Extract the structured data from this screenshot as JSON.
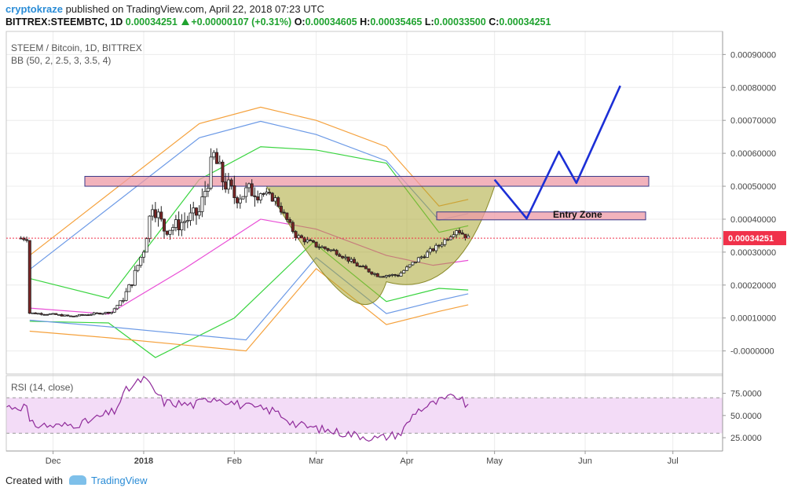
{
  "header": {
    "user": "cryptokraze",
    "published": "published on TradingView.com, April 22, 2018 07:23 UTC",
    "symbol": "BITTREX:STEEMBTC, 1D",
    "last": "0.00034251",
    "change": "+0.00000107 (+0.31%)",
    "o_label": "O:",
    "o": "0.00034605",
    "h_label": "H:",
    "h": "0.00035465",
    "l_label": "L:",
    "l": "0.00033500",
    "c_label": "C:",
    "c": "0.00034251"
  },
  "pane": {
    "title": "STEEM / Bitcoin, 1D, BITTREX",
    "indicator": "BB (50, 2, 2.5, 3, 3.5, 4)",
    "rsi_label": "RSI (14, close)",
    "entry_zone": "Entry Zone",
    "price_tag": "0.00034251"
  },
  "footer": {
    "created": "Created with",
    "brand": "TradingView"
  },
  "colors": {
    "price_tag": "#f0314a",
    "resistance": "#ee9aa6",
    "projection": "#1c2fd6",
    "cup_fill": "#a9a632",
    "rsi_line": "#8f2a9a",
    "rsi_band": "#f3dcf7",
    "bb_basis": "#e94ed6",
    "bb_green": "#39d43f",
    "bb_blue": "#6b99e6",
    "bb_orange": "#f5a13c"
  },
  "chart_data": [
    {
      "type": "candlestick",
      "title": "STEEM / Bitcoin, 1D, BITTREX",
      "x_ticks": [
        "Dec",
        "2018",
        "Feb",
        "Mar",
        "Apr",
        "May",
        "Jun",
        "Jul"
      ],
      "y_ticks": [
        "0.00090000",
        "0.00080000",
        "0.00070000",
        "0.00060000",
        "0.00050000",
        "0.00040000",
        "0.00030000",
        "0.00020000",
        "0.00010000",
        "-0.0000000"
      ],
      "ylim": [
        -7e-05,
        0.00097
      ],
      "last_price": 0.00034251,
      "close_series": [
        {
          "date": "2017-11-23",
          "close": 0.000115
        },
        {
          "date": "2017-11-30",
          "close": 0.000112
        },
        {
          "date": "2017-12-07",
          "close": 0.000105
        },
        {
          "date": "2017-12-14",
          "close": 0.000112
        },
        {
          "date": "2017-12-21",
          "close": 0.000118
        },
        {
          "date": "2017-12-25",
          "close": 0.00016
        },
        {
          "date": "2017-12-28",
          "close": 0.00021
        },
        {
          "date": "2018-01-01",
          "close": 0.00031
        },
        {
          "date": "2018-01-04",
          "close": 0.00045
        },
        {
          "date": "2018-01-08",
          "close": 0.00037
        },
        {
          "date": "2018-01-12",
          "close": 0.00038
        },
        {
          "date": "2018-01-16",
          "close": 0.0004
        },
        {
          "date": "2018-01-20",
          "close": 0.00042
        },
        {
          "date": "2018-01-25",
          "close": 0.00059
        },
        {
          "date": "2018-01-28",
          "close": 0.00052
        },
        {
          "date": "2018-02-01",
          "close": 0.00047
        },
        {
          "date": "2018-02-08",
          "close": 0.00049
        },
        {
          "date": "2018-02-15",
          "close": 0.00046
        },
        {
          "date": "2018-02-22",
          "close": 0.00035
        },
        {
          "date": "2018-03-01",
          "close": 0.00032
        },
        {
          "date": "2018-03-08",
          "close": 0.0003
        },
        {
          "date": "2018-03-15",
          "close": 0.00026
        },
        {
          "date": "2018-03-22",
          "close": 0.00023
        },
        {
          "date": "2018-03-29",
          "close": 0.00023
        },
        {
          "date": "2018-04-05",
          "close": 0.00028
        },
        {
          "date": "2018-04-12",
          "close": 0.00032
        },
        {
          "date": "2018-04-18",
          "close": 0.00037
        },
        {
          "date": "2018-04-22",
          "close": 0.00034251
        }
      ],
      "bollinger": {
        "basis": [
          {
            "date": "2017-11-23",
            "v": 0.00013
          },
          {
            "date": "2017-12-20",
            "v": 0.000112
          },
          {
            "date": "2018-01-15",
            "v": 0.00025
          },
          {
            "date": "2018-02-10",
            "v": 0.0004
          },
          {
            "date": "2018-03-01",
            "v": 0.00037
          },
          {
            "date": "2018-03-25",
            "v": 0.00029
          },
          {
            "date": "2018-04-10",
            "v": 0.00026
          },
          {
            "date": "2018-04-22",
            "v": 0.000275
          }
        ],
        "upper_2": [
          {
            "date": "2017-11-23",
            "v": 0.00022
          },
          {
            "date": "2017-12-20",
            "v": 0.00016
          },
          {
            "date": "2018-01-01",
            "v": 0.0003
          },
          {
            "date": "2018-01-20",
            "v": 0.00052
          },
          {
            "date": "2018-02-10",
            "v": 0.00062
          },
          {
            "date": "2018-03-01",
            "v": 0.00061
          },
          {
            "date": "2018-03-25",
            "v": 0.00057
          },
          {
            "date": "2018-04-12",
            "v": 0.00036
          },
          {
            "date": "2018-04-22",
            "v": 0.00038
          }
        ],
        "lower_2": [
          {
            "date": "2017-11-23",
            "v": 9e-05
          },
          {
            "date": "2017-12-20",
            "v": 8.5e-05
          },
          {
            "date": "2018-01-05",
            "v": -2e-05
          },
          {
            "date": "2018-02-01",
            "v": 0.0001
          },
          {
            "date": "2018-02-28",
            "v": 0.00033
          },
          {
            "date": "2018-03-25",
            "v": 0.00015
          },
          {
            "date": "2018-04-12",
            "v": 0.00019
          },
          {
            "date": "2018-04-22",
            "v": 0.000185
          }
        ],
        "upper_outer": [
          {
            "date": "2017-11-23",
            "v": 0.00029
          },
          {
            "date": "2018-01-20",
            "v": 0.00069
          },
          {
            "date": "2018-02-10",
            "v": 0.00074
          },
          {
            "date": "2018-03-01",
            "v": 0.0007
          },
          {
            "date": "2018-03-25",
            "v": 0.00062
          },
          {
            "date": "2018-04-12",
            "v": 0.00044
          },
          {
            "date": "2018-04-22",
            "v": 0.00046
          }
        ],
        "lower_outer": [
          {
            "date": "2017-11-23",
            "v": 6e-05
          },
          {
            "date": "2017-12-20",
            "v": 4e-05
          },
          {
            "date": "2018-02-05",
            "v": 0.0
          },
          {
            "date": "2018-03-01",
            "v": 0.00025
          },
          {
            "date": "2018-03-25",
            "v": 8e-05
          },
          {
            "date": "2018-04-12",
            "v": 0.00012
          },
          {
            "date": "2018-04-22",
            "v": 0.00014
          }
        ]
      },
      "annotations": {
        "resistance_zone": [
          0.0005,
          0.00053
        ],
        "entry_zone": [
          0.000398,
          0.000422
        ],
        "cup": {
          "start": "2018-02-12",
          "bottom": "2018-03-25",
          "end": "2018-05-01",
          "top": 0.0005,
          "low": 0.00021
        },
        "projection": [
          {
            "date": "2018-05-01",
            "v": 0.00052
          },
          {
            "date": "2018-05-12",
            "v": 0.000402
          },
          {
            "date": "2018-05-23",
            "v": 0.000605
          },
          {
            "date": "2018-05-29",
            "v": 0.00051
          },
          {
            "date": "2018-06-13",
            "v": 0.000805
          }
        ]
      }
    },
    {
      "type": "line",
      "title": "RSI (14, close)",
      "y_ticks": [
        "75.0000",
        "50.0000",
        "25.0000"
      ],
      "ylim": [
        10,
        95
      ],
      "band": [
        30,
        70
      ],
      "series": [
        {
          "date": "2017-11-23",
          "v": 40
        },
        {
          "date": "2017-12-03",
          "v": 38
        },
        {
          "date": "2017-12-12",
          "v": 42
        },
        {
          "date": "2017-12-22",
          "v": 55
        },
        {
          "date": "2017-12-26",
          "v": 78
        },
        {
          "date": "2018-01-01",
          "v": 92
        },
        {
          "date": "2018-01-08",
          "v": 65
        },
        {
          "date": "2018-01-18",
          "v": 62
        },
        {
          "date": "2018-01-25",
          "v": 71
        },
        {
          "date": "2018-02-05",
          "v": 60
        },
        {
          "date": "2018-02-15",
          "v": 55
        },
        {
          "date": "2018-02-22",
          "v": 40
        },
        {
          "date": "2018-03-05",
          "v": 33
        },
        {
          "date": "2018-03-15",
          "v": 28
        },
        {
          "date": "2018-03-22",
          "v": 24
        },
        {
          "date": "2018-03-30",
          "v": 30
        },
        {
          "date": "2018-04-04",
          "v": 55
        },
        {
          "date": "2018-04-12",
          "v": 66
        },
        {
          "date": "2018-04-18",
          "v": 72
        },
        {
          "date": "2018-04-22",
          "v": 60
        }
      ]
    }
  ]
}
